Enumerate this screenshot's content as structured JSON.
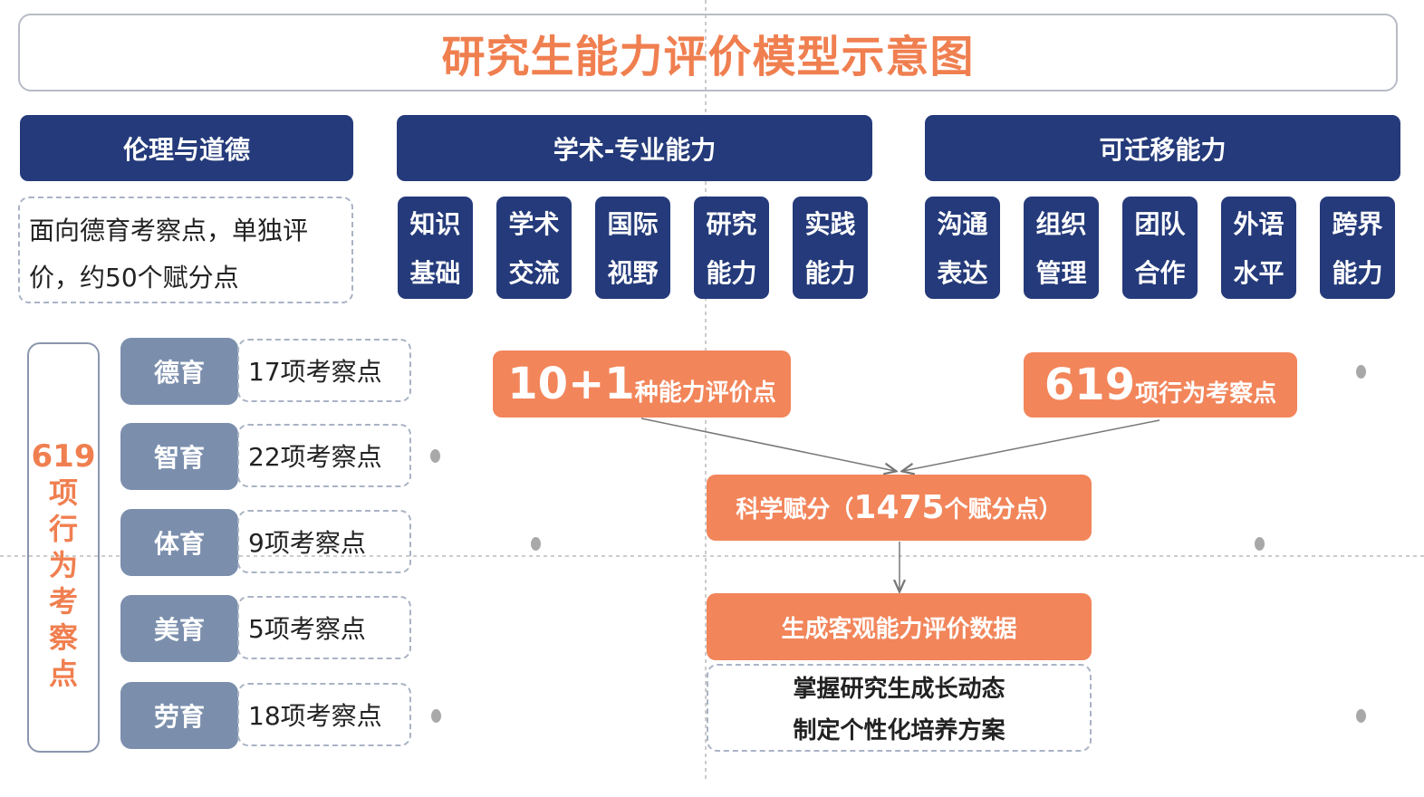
{
  "title": "研究生能力评价模型示意图",
  "headers": {
    "ethics": "伦理与道德",
    "academic": "学术-专业能力",
    "transferable": "可迁移能力"
  },
  "ethics_note": "面向德育考察点，单独评价，约50个赋分点",
  "academic_items": [
    "知识基础",
    "学术交流",
    "国际视野",
    "研究能力",
    "实践能力"
  ],
  "transferable_items": [
    "沟通表达",
    "组织管理",
    "团队合作",
    "外语水平",
    "跨界能力"
  ],
  "side_label": {
    "number": "619",
    "text": "项行为考察点"
  },
  "education": [
    {
      "name": "德育",
      "points": "17项考察点"
    },
    {
      "name": "智育",
      "points": "22项考察点"
    },
    {
      "name": "体育",
      "points": "9项考察点"
    },
    {
      "name": "美育",
      "points": "5项考察点"
    },
    {
      "name": "劳育",
      "points": "18项考察点"
    }
  ],
  "flow": {
    "ability": {
      "number": "10+1",
      "text": "种能力评价点"
    },
    "behavior": {
      "number": "619",
      "text": "项行为考察点"
    },
    "scoring": {
      "prefix": "科学赋分（",
      "number": "1475",
      "suffix": "个赋分点）"
    },
    "output": "生成客观能力评价数据",
    "outcomes": [
      "掌握研究生成长动态",
      "制定个性化培养方案"
    ]
  },
  "colors": {
    "navy": "#243a7a",
    "orange": "#f2855a",
    "title": "#f07f50",
    "grey_blue": "#7b8fad"
  }
}
